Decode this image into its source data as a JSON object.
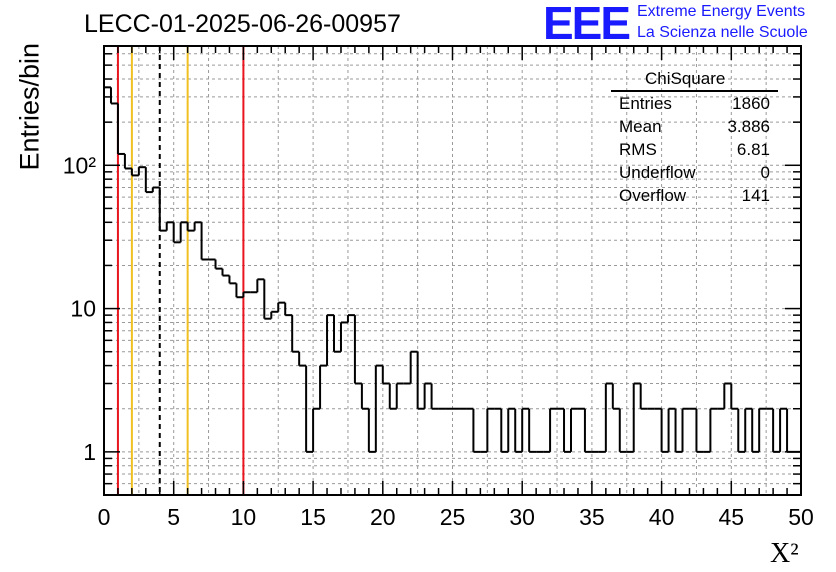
{
  "title": "LECC-01-2025-06-26-00957",
  "logo": {
    "letters": "EEE",
    "line1": "Extreme Energy Events",
    "line2": "La Scienza nelle Scuole",
    "color": "#1a1aff"
  },
  "stats": {
    "name": "ChiSquare",
    "rows": [
      {
        "label": "Entries",
        "value": "1860"
      },
      {
        "label": "Mean",
        "value": "3.886"
      },
      {
        "label": "RMS",
        "value": "6.81"
      },
      {
        "label": "Underflow",
        "value": "0"
      },
      {
        "label": "Overflow",
        "value": "141"
      }
    ]
  },
  "chart_data": {
    "type": "histogram",
    "title": "LECC-01-2025-06-26-00957",
    "xlabel": "X²",
    "ylabel": "Entries/bin",
    "xlim": [
      0,
      50
    ],
    "ylim": [
      0.5,
      680
    ],
    "yscale": "log",
    "grid": true,
    "bin_width": 0.5,
    "xticks": [
      "0",
      "5",
      "10",
      "15",
      "20",
      "25",
      "30",
      "35",
      "40",
      "45",
      "50"
    ],
    "yticks": [
      {
        "value": 1,
        "label": "1"
      },
      {
        "value": 10,
        "label": "10"
      },
      {
        "value": 100,
        "label": "10²"
      }
    ],
    "values": [
      350,
      270,
      120,
      95,
      85,
      97,
      65,
      70,
      35,
      40,
      29,
      40,
      35,
      40,
      22,
      22,
      19,
      17,
      15,
      12,
      13,
      13,
      16,
      8.5,
      9.5,
      11,
      9,
      5,
      4,
      1,
      2,
      4,
      9,
      5,
      8,
      9,
      3,
      2,
      1,
      4,
      3,
      2,
      3,
      3,
      5,
      2,
      3,
      2,
      2,
      2,
      2,
      2,
      2,
      1,
      1,
      2,
      2,
      1,
      2,
      1,
      2,
      1,
      1,
      1,
      2,
      2,
      1,
      2,
      2,
      1,
      1,
      1,
      3,
      2,
      1,
      1,
      3,
      2,
      2,
      2,
      1,
      2,
      1,
      2,
      2,
      1,
      1,
      2,
      2,
      3,
      2,
      1,
      2,
      1,
      2,
      2,
      1,
      2,
      1,
      1
    ],
    "vlines": [
      {
        "x": 1,
        "color": "#e8141e",
        "style": "solid"
      },
      {
        "x": 2,
        "color": "#f0c020",
        "style": "solid"
      },
      {
        "x": 4,
        "color": "#000000",
        "style": "dashed"
      },
      {
        "x": 6,
        "color": "#f0c020",
        "style": "solid"
      },
      {
        "x": 10,
        "color": "#e8141e",
        "style": "solid"
      }
    ]
  }
}
